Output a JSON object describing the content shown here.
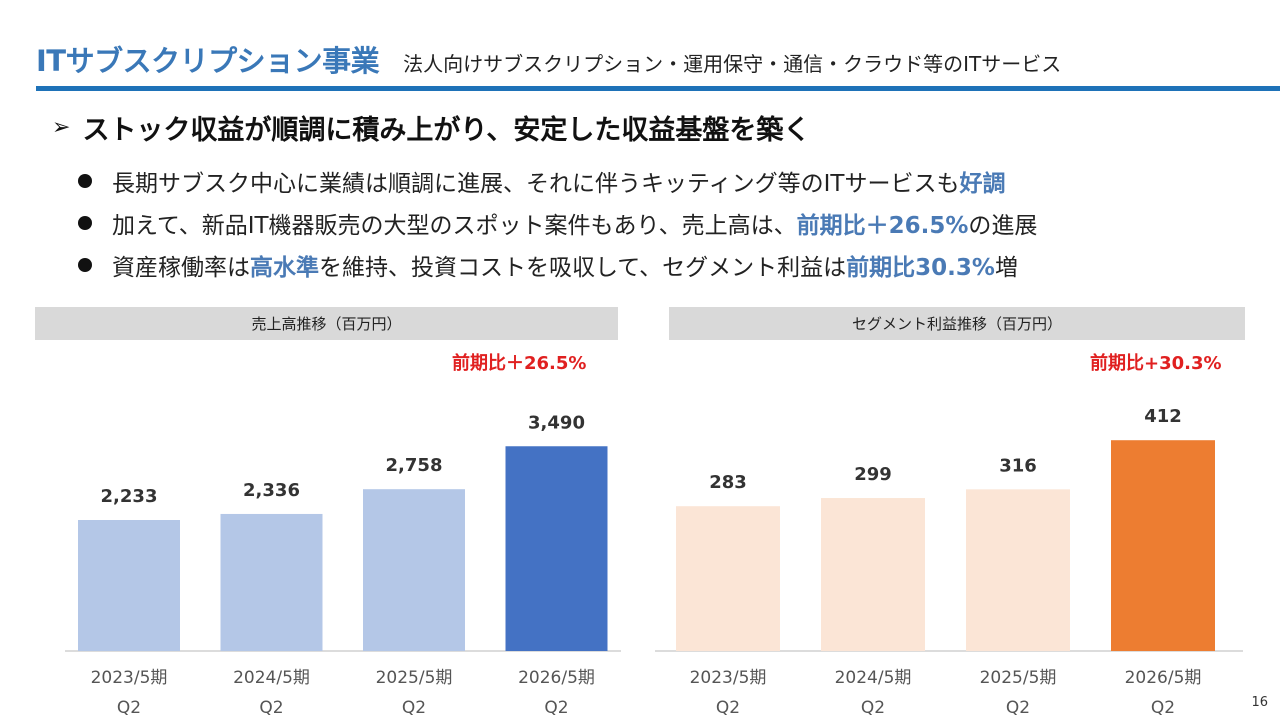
{
  "header": {
    "title": "ITサブスクリプション事業",
    "subtitle": "法人向けサブスクリプション・運用保守・通信・クラウド等のITサービス"
  },
  "headline": {
    "arrow": "➢",
    "text": "ストック収益が順調に積み上がり、安定した収益基盤を築く"
  },
  "bullets": [
    {
      "parts": [
        {
          "text": "長期サブスク中心に業績は順調に進展、それに伴うキッティング等のITサービスも"
        },
        {
          "text": "好調",
          "hl": true
        }
      ]
    },
    {
      "parts": [
        {
          "text": "加えて、新品IT機器販売の大型のスポット案件もあり、売上高は、"
        },
        {
          "text": "前期比＋26.5%",
          "hl": true
        },
        {
          "text": "の進展"
        }
      ]
    },
    {
      "parts": [
        {
          "text": "資産稼働率は"
        },
        {
          "text": "高水準",
          "hl": true
        },
        {
          "text": "を維持、投資コストを吸収して、セグメント利益は"
        },
        {
          "text": "前期比30.3%",
          "hl": true
        },
        {
          "text": "増"
        }
      ]
    }
  ],
  "colors": {
    "title": "#3a78b8",
    "rule": "#1e72b8",
    "highlight": "#4a7ab5",
    "growth": "#e02020",
    "sales_bar": "#b4c7e7",
    "sales_bar_latest": "#4472c4",
    "profit_bar": "#fbe5d6",
    "profit_bar_latest": "#ed7d31"
  },
  "chart_data": [
    {
      "type": "bar",
      "title": "売上高推移（百万円）",
      "growth_label": "前期比＋26.5%",
      "categories": [
        "2023/5期\nQ2",
        "2024/5期\nQ2",
        "2025/5期\nQ2",
        "2026/5期\nQ2"
      ],
      "values": [
        2233,
        2336,
        2758,
        3490
      ],
      "value_labels": [
        "2,233",
        "2,336",
        "2,758",
        "3,490"
      ],
      "xlabel": "",
      "ylabel": "",
      "ylim": [
        0,
        3750
      ]
    },
    {
      "type": "bar",
      "title": "セグメント利益推移（百万円）",
      "growth_label": "前期比+30.3%",
      "categories": [
        "2023/5期\nQ2",
        "2024/5期\nQ2",
        "2025/5期\nQ2",
        "2026/5期\nQ2"
      ],
      "values": [
        283,
        299,
        316,
        412
      ],
      "value_labels": [
        "283",
        "299",
        "316",
        "412"
      ],
      "xlabel": "",
      "ylabel": "",
      "ylim": [
        0,
        430
      ]
    }
  ],
  "page_number": "16"
}
